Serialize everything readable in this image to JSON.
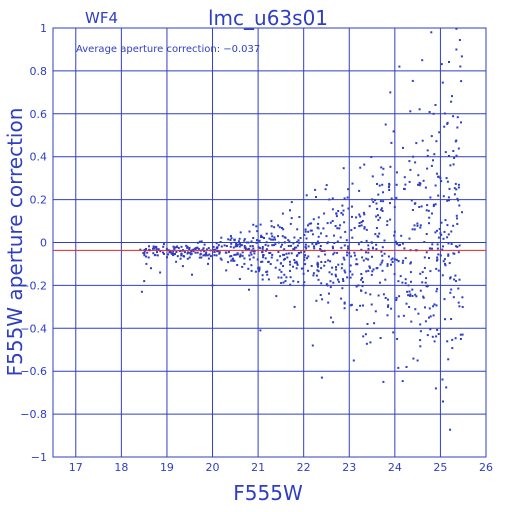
{
  "chart_data": {
    "type": "scatter",
    "chip_label": "WF4",
    "title": "lmc_u63s01",
    "annotation": "Average aperture correction: −0.037",
    "xlabel": "F555W",
    "ylabel": "F555W aperture correction",
    "xlim": [
      16.5,
      26
    ],
    "ylim": [
      -1,
      1
    ],
    "x_ticks": [
      17,
      18,
      19,
      20,
      21,
      22,
      23,
      24,
      25,
      26
    ],
    "y_ticks": [
      -1,
      -0.8,
      -0.6,
      -0.4,
      -0.2,
      0,
      0.2,
      0.4,
      0.6,
      0.8,
      1
    ],
    "y_tick_labels": [
      "−1",
      "−0.8",
      "−0.6",
      "−0.4",
      "−0.2",
      "0",
      "0.2",
      "0.4",
      "0.6",
      "0.8",
      "1"
    ],
    "grid": true,
    "average_line": -0.037,
    "zero_line": 0,
    "sampled_points": [
      [
        18.45,
        -0.23
      ],
      [
        18.5,
        -0.18
      ],
      [
        18.55,
        -0.1
      ],
      [
        18.6,
        -0.07
      ],
      [
        18.65,
        -0.12
      ],
      [
        18.7,
        -0.05
      ],
      [
        18.75,
        -0.02
      ],
      [
        18.8,
        -0.06
      ],
      [
        18.85,
        -0.14
      ],
      [
        19.0,
        -0.03
      ],
      [
        19.1,
        -0.05
      ],
      [
        19.2,
        -0.09
      ],
      [
        19.3,
        -0.04
      ],
      [
        19.35,
        -0.11
      ],
      [
        19.45,
        -0.02
      ],
      [
        19.5,
        -0.07
      ],
      [
        19.55,
        -0.15
      ],
      [
        19.7,
        -0.03
      ],
      [
        19.8,
        -0.06
      ],
      [
        19.9,
        -0.1
      ],
      [
        20.0,
        -0.2
      ],
      [
        20.1,
        -0.04
      ],
      [
        20.2,
        -0.08
      ],
      [
        20.3,
        -0.13
      ],
      [
        20.4,
        -0.02
      ],
      [
        20.55,
        -0.05
      ],
      [
        20.6,
        -0.17
      ],
      [
        20.7,
        -0.1
      ],
      [
        20.8,
        -0.22
      ],
      [
        20.9,
        -0.04
      ],
      [
        21.0,
        -0.12
      ],
      [
        21.05,
        -0.41
      ],
      [
        21.1,
        -0.03
      ],
      [
        21.2,
        -0.15
      ],
      [
        21.3,
        -0.07
      ],
      [
        21.4,
        -0.25
      ],
      [
        21.5,
        -0.02
      ],
      [
        21.6,
        -0.18
      ],
      [
        21.7,
        -0.09
      ],
      [
        21.8,
        -0.3
      ],
      [
        21.9,
        -0.05
      ],
      [
        22.0,
        -0.2
      ],
      [
        22.1,
        0.05
      ],
      [
        22.2,
        -0.48
      ],
      [
        22.3,
        -0.1
      ],
      [
        22.4,
        -0.63
      ],
      [
        22.5,
        0.03
      ],
      [
        22.6,
        -0.35
      ],
      [
        22.7,
        -0.15
      ],
      [
        22.8,
        0.08
      ],
      [
        22.9,
        -0.28
      ],
      [
        23.0,
        -0.05
      ],
      [
        23.1,
        -0.55
      ],
      [
        23.2,
        -0.2
      ],
      [
        23.3,
        0.1
      ],
      [
        23.4,
        -0.38
      ],
      [
        23.5,
        0.2
      ],
      [
        23.6,
        -0.12
      ],
      [
        23.7,
        0.35
      ],
      [
        23.75,
        -0.65
      ],
      [
        23.8,
        0.55
      ],
      [
        23.85,
        -0.3
      ],
      [
        23.9,
        0.7
      ],
      [
        24.0,
        0.05
      ],
      [
        24.05,
        -0.45
      ],
      [
        24.1,
        0.82
      ],
      [
        24.2,
        0.25
      ],
      [
        24.3,
        -0.2
      ],
      [
        24.4,
        0.4
      ],
      [
        24.5,
        -0.55
      ],
      [
        24.6,
        0.85
      ],
      [
        24.7,
        0.15
      ],
      [
        24.75,
        -0.35
      ],
      [
        24.8,
        0.98
      ],
      [
        24.85,
        0.6
      ],
      [
        24.9,
        -0.68
      ],
      [
        25.0,
        0.3
      ],
      [
        25.1,
        -0.1
      ],
      [
        25.2,
        0.25
      ],
      [
        25.35,
        0.9
      ],
      [
        25.4,
        -0.28
      ],
      [
        25.45,
        -0.45
      ]
    ]
  }
}
